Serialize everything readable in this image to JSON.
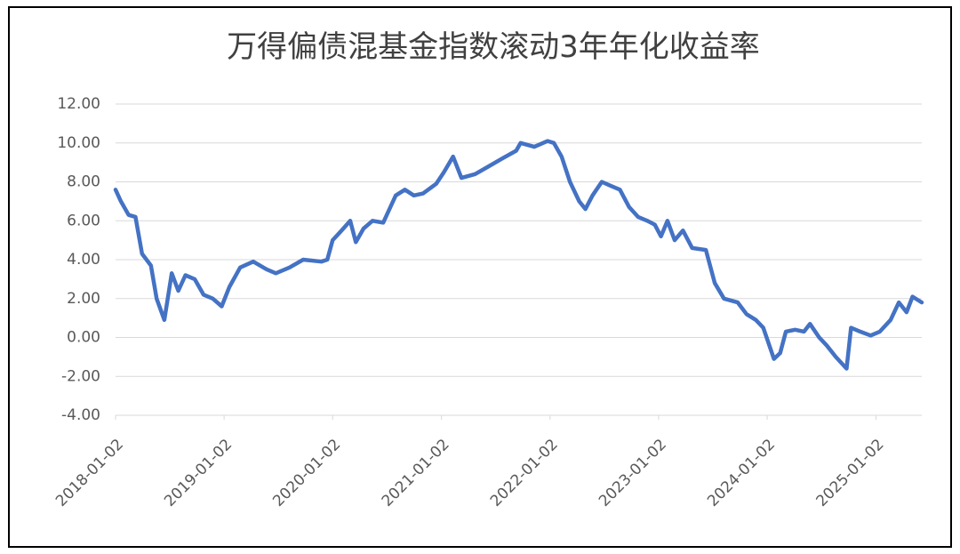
{
  "chart_data": {
    "type": "line",
    "title": "万得偏债混基金指数滚动3年年化收益率",
    "x": [
      "2018-01-02",
      "2018-01-20",
      "2018-02-15",
      "2018-03-10",
      "2018-04-01",
      "2018-05-01",
      "2018-05-20",
      "2018-06-15",
      "2018-07-10",
      "2018-08-01",
      "2018-08-25",
      "2018-09-25",
      "2018-10-25",
      "2018-11-25",
      "2018-12-25",
      "2019-01-20",
      "2019-02-25",
      "2019-04-10",
      "2019-05-25",
      "2019-06-25",
      "2019-08-10",
      "2019-09-25",
      "2019-11-25",
      "2019-12-15",
      "2020-01-02",
      "2020-02-01",
      "2020-03-01",
      "2020-03-20",
      "2020-04-15",
      "2020-05-15",
      "2020-06-20",
      "2020-08-01",
      "2020-09-01",
      "2020-10-01",
      "2020-11-01",
      "2020-12-15",
      "2021-01-10",
      "2021-02-10",
      "2021-03-10",
      "2021-04-25",
      "2021-06-10",
      "2021-07-25",
      "2021-09-10",
      "2021-09-25",
      "2021-11-10",
      "2021-12-25",
      "2022-01-15",
      "2022-02-10",
      "2022-03-10",
      "2022-04-10",
      "2022-05-01",
      "2022-05-25",
      "2022-06-25",
      "2022-07-25",
      "2022-08-25",
      "2022-09-25",
      "2022-10-25",
      "2022-11-25",
      "2022-12-20",
      "2023-01-10",
      "2023-02-01",
      "2023-02-25",
      "2023-03-25",
      "2023-04-25",
      "2023-06-10",
      "2023-07-10",
      "2023-08-10",
      "2023-09-25",
      "2023-10-25",
      "2023-11-25",
      "2023-12-20",
      "2024-01-25",
      "2024-02-15",
      "2024-03-05",
      "2024-04-05",
      "2024-05-05",
      "2024-05-25",
      "2024-06-25",
      "2024-07-20",
      "2024-08-20",
      "2024-09-25",
      "2024-10-10",
      "2024-11-10",
      "2024-12-15",
      "2025-01-15",
      "2025-02-20",
      "2025-03-20",
      "2025-04-15",
      "2025-05-05",
      "2025-06-05"
    ],
    "series": [
      {
        "color": "#4472c4",
        "values": [
          7.6,
          7.0,
          6.3,
          6.2,
          4.3,
          3.7,
          2.0,
          0.9,
          3.3,
          2.4,
          3.2,
          3.0,
          2.2,
          2.0,
          1.6,
          2.6,
          3.6,
          3.9,
          3.5,
          3.3,
          3.6,
          4.0,
          3.9,
          4.0,
          5.0,
          5.5,
          6.0,
          4.9,
          5.6,
          6.0,
          5.9,
          7.3,
          7.6,
          7.3,
          7.4,
          7.9,
          8.5,
          9.3,
          8.2,
          8.4,
          8.8,
          9.2,
          9.6,
          10.0,
          9.8,
          10.1,
          10.0,
          9.3,
          8.0,
          7.0,
          6.6,
          7.3,
          8.0,
          7.8,
          7.6,
          6.7,
          6.2,
          6.0,
          5.8,
          5.2,
          6.0,
          5.0,
          5.5,
          4.6,
          4.5,
          2.8,
          2.0,
          1.8,
          1.2,
          0.9,
          0.5,
          -1.1,
          -0.8,
          0.3,
          0.4,
          0.3,
          0.7,
          0.0,
          -0.4,
          -1.0,
          -1.6,
          0.5,
          0.3,
          0.1,
          0.3,
          0.9,
          1.8,
          1.3,
          2.1,
          1.8
        ]
      }
    ],
    "xlim": [
      "2018-01-02",
      "2025-06-05"
    ],
    "xticks": [
      "2018-01-02",
      "2019-01-02",
      "2020-01-02",
      "2021-01-02",
      "2022-01-02",
      "2023-01-02",
      "2024-01-02",
      "2025-01-02"
    ],
    "ylim": [
      -4,
      12
    ],
    "yticks": [
      {
        "value": -4,
        "label": "-4.00"
      },
      {
        "value": -2,
        "label": "-2.00"
      },
      {
        "value": 0,
        "label": "0.00"
      },
      {
        "value": 2,
        "label": "2.00"
      },
      {
        "value": 4,
        "label": "4.00"
      },
      {
        "value": 6,
        "label": "6.00"
      },
      {
        "value": 8,
        "label": "8.00"
      },
      {
        "value": 10,
        "label": "10.00"
      },
      {
        "value": 12,
        "label": "12.00"
      }
    ],
    "grid": true
  }
}
